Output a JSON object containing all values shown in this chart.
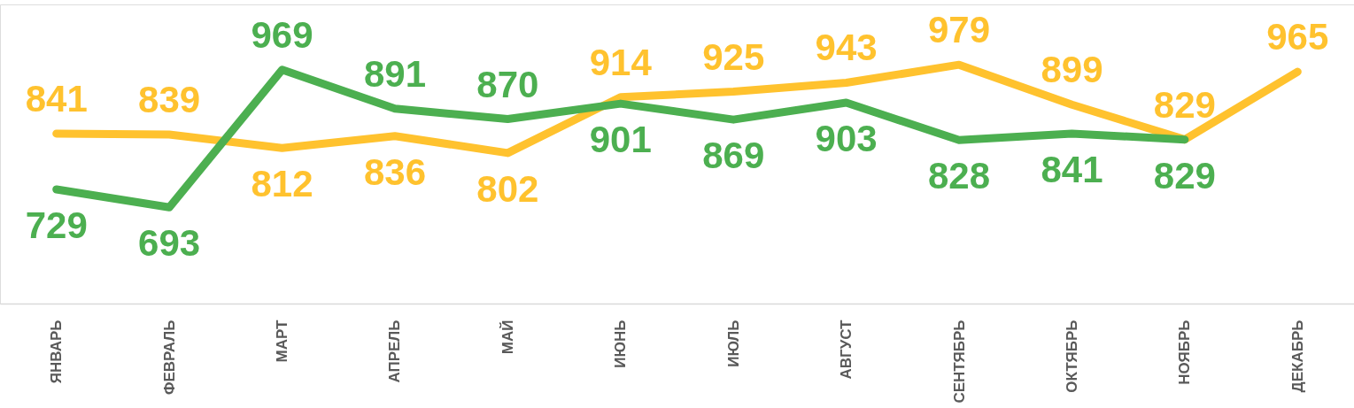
{
  "chart_data": {
    "type": "line",
    "categories": [
      "ЯНВАРЬ",
      "ФЕВРАЛЬ",
      "МАРТ",
      "АПРЕЛЬ",
      "МАЙ",
      "ИЮНЬ",
      "ИЮЛЬ",
      "АВГУСТ",
      "СЕНТЯБРЬ",
      "ОКТЯБРЬ",
      "НОЯБРЬ",
      "ДЕКАБРЬ"
    ],
    "series": [
      {
        "color": "#ffc22e",
        "values": [
          841,
          839,
          812,
          836,
          802,
          914,
          925,
          943,
          979,
          899,
          829,
          965
        ]
      },
      {
        "color": "#4caf50",
        "values": [
          729,
          693,
          969,
          891,
          870,
          901,
          869,
          903,
          828,
          841,
          829,
          null
        ]
      }
    ],
    "ylim": [
      500,
      1100
    ],
    "tick_labels": "x",
    "data_labels": true,
    "grid": false,
    "legend": false,
    "marker": "none",
    "line_style": "solid"
  }
}
